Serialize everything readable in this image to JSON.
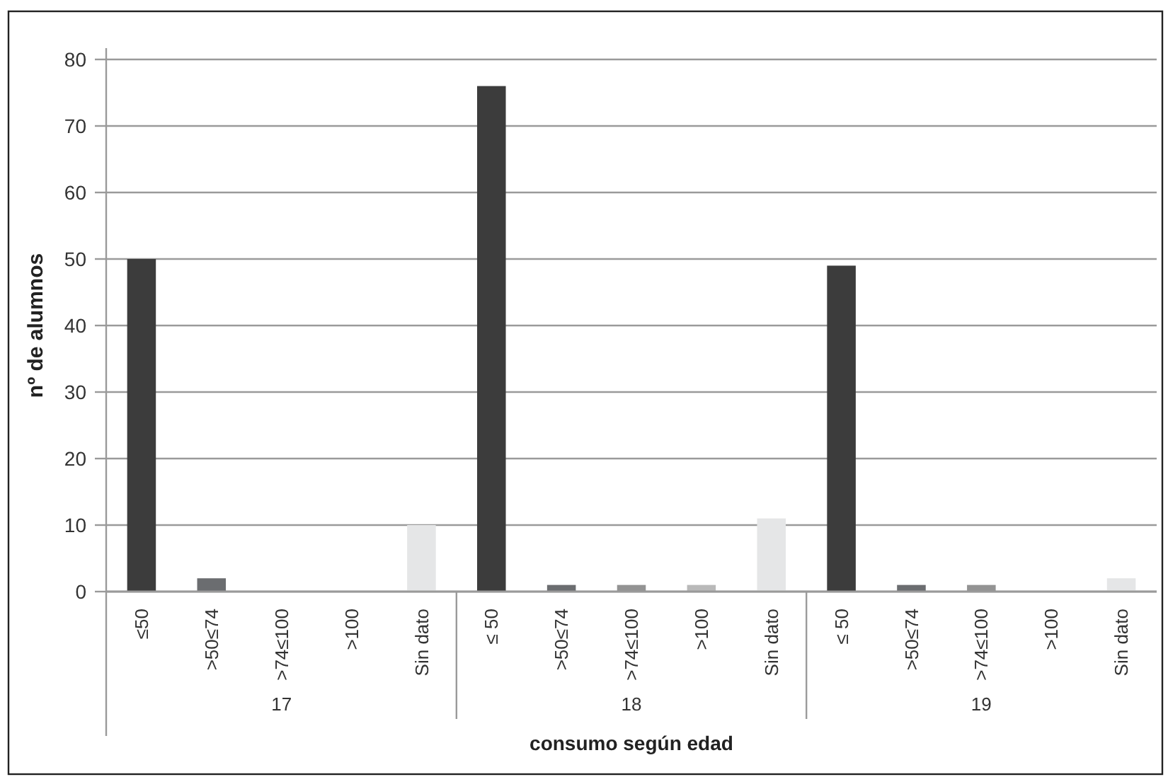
{
  "chart_data": {
    "type": "bar",
    "xlabel": "consumo según edad",
    "ylabel": "nº de alumnos",
    "categories": [
      "≤50",
      ">50≤74",
      ">74≤100",
      ">100",
      "Sin dato",
      "≤ 50",
      ">50≤74",
      ">74≤100",
      ">100",
      "Sin dato",
      "≤ 50",
      ">50≤74",
      ">74≤100",
      ">100",
      "Sin dato"
    ],
    "values": [
      50,
      2,
      0,
      0,
      10,
      76,
      1,
      1,
      1,
      11,
      49,
      1,
      1,
      0,
      2
    ],
    "colors": [
      "#3c3c3c",
      "#6b6d70",
      "#939393",
      "#b9b9b9",
      "#e5e6e7",
      "#3c3c3c",
      "#6b6d70",
      "#939393",
      "#b9b9b9",
      "#e5e6e7",
      "#3c3c3c",
      "#6b6d70",
      "#939393",
      "#b9b9b9",
      "#e5e6e7"
    ],
    "annotations": [
      "17",
      "18",
      "19"
    ],
    "ylim": [
      0,
      80
    ],
    "yticks": [
      0,
      10,
      20,
      30,
      40,
      50,
      60,
      70,
      80
    ],
    "grid": "y"
  }
}
